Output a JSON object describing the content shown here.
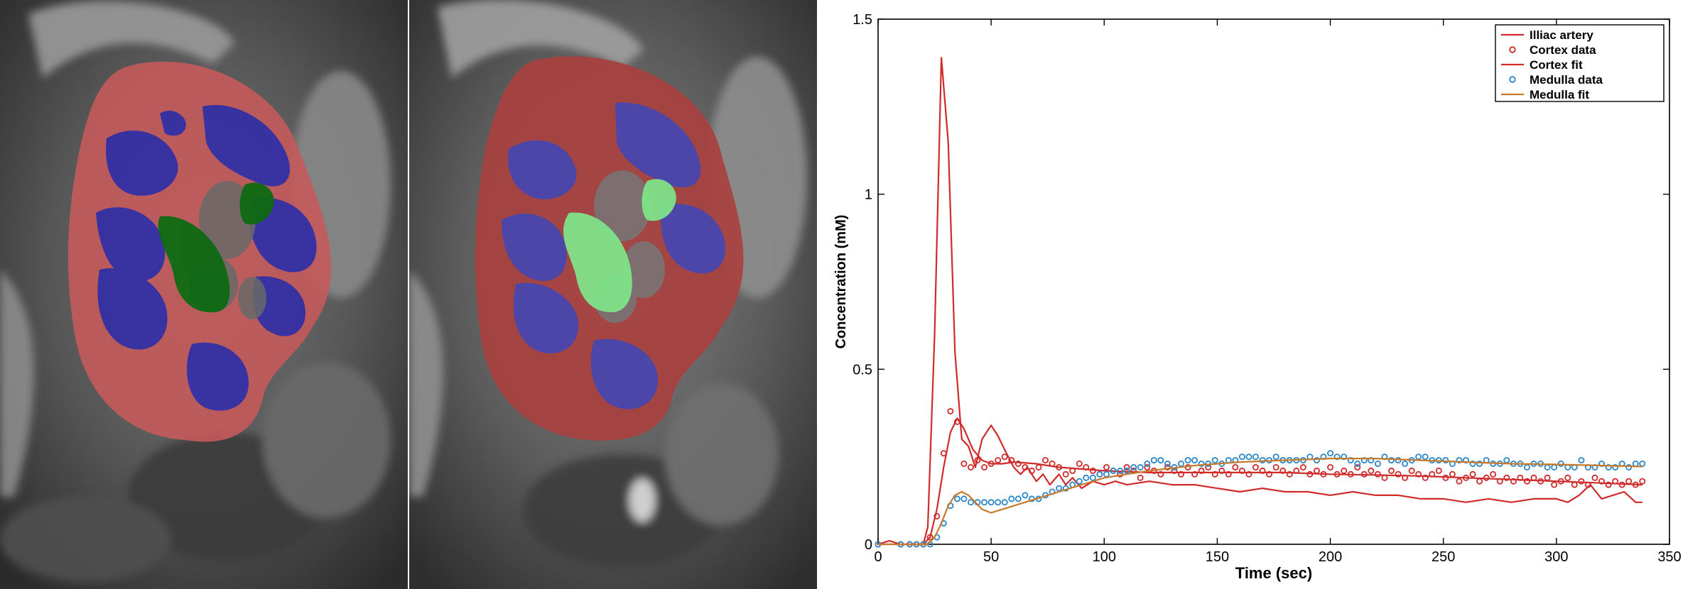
{
  "images": {
    "left": {
      "segmentation": "kidney-segmentation-dark",
      "colors": {
        "cortex": "#c45a5a",
        "medulla": "#2e2fa8",
        "pelvis": "#0e6a12"
      }
    },
    "right": {
      "segmentation": "kidney-segmentation-light",
      "colors": {
        "cortex": "#a8403f",
        "medulla": "#4347b4",
        "pelvis": "#7fe389"
      }
    }
  },
  "chart_data": {
    "type": "line",
    "xlabel": "Time (sec)",
    "ylabel": "Concentration (mM)",
    "xlim": [
      0,
      350
    ],
    "ylim": [
      0,
      1.5
    ],
    "xticks": [
      "0",
      "50",
      "100",
      "150",
      "200",
      "250",
      "300",
      "350"
    ],
    "yticks": [
      "0",
      "0.5",
      "1",
      "1.5"
    ],
    "grid": false,
    "legend_position": "top-right",
    "series": [
      {
        "name": "Illiac artery",
        "kind": "line",
        "color": "#d02a2a",
        "x": [
          0,
          5,
          10,
          15,
          20,
          22,
          25,
          28,
          31,
          34,
          37,
          40,
          43,
          46,
          50,
          53,
          56,
          60,
          63,
          66,
          70,
          73,
          76,
          80,
          83,
          86,
          90,
          95,
          100,
          105,
          110,
          120,
          130,
          140,
          150,
          160,
          170,
          180,
          190,
          200,
          210,
          220,
          230,
          240,
          250,
          260,
          270,
          280,
          290,
          300,
          305,
          310,
          315,
          320,
          325,
          330,
          335,
          338
        ],
        "y": [
          0,
          0.01,
          0,
          0,
          0,
          0.05,
          0.6,
          1.39,
          1.15,
          0.55,
          0.3,
          0.28,
          0.22,
          0.3,
          0.34,
          0.31,
          0.27,
          0.22,
          0.2,
          0.22,
          0.18,
          0.2,
          0.17,
          0.2,
          0.17,
          0.19,
          0.16,
          0.18,
          0.17,
          0.18,
          0.17,
          0.18,
          0.17,
          0.17,
          0.16,
          0.15,
          0.16,
          0.15,
          0.15,
          0.14,
          0.15,
          0.14,
          0.14,
          0.13,
          0.13,
          0.12,
          0.13,
          0.12,
          0.13,
          0.13,
          0.12,
          0.14,
          0.17,
          0.13,
          0.14,
          0.15,
          0.12,
          0.12
        ]
      },
      {
        "name": "Cortex data",
        "kind": "markers",
        "color": "#d02a2a",
        "x": [
          0,
          10,
          14,
          17,
          20,
          23,
          26,
          29,
          32,
          35,
          38,
          41,
          44,
          47,
          50,
          53,
          56,
          59,
          62,
          65,
          68,
          71,
          74,
          77,
          80,
          83,
          86,
          89,
          92,
          95,
          98,
          101,
          104,
          107,
          110,
          113,
          116,
          119,
          122,
          125,
          128,
          131,
          134,
          137,
          140,
          143,
          146,
          149,
          152,
          155,
          158,
          161,
          164,
          167,
          170,
          173,
          176,
          179,
          182,
          185,
          188,
          191,
          194,
          197,
          200,
          203,
          206,
          209,
          212,
          215,
          218,
          221,
          224,
          227,
          230,
          233,
          236,
          239,
          242,
          245,
          248,
          251,
          254,
          257,
          260,
          263,
          266,
          269,
          272,
          275,
          278,
          281,
          284,
          287,
          290,
          293,
          296,
          299,
          302,
          305,
          308,
          311,
          314,
          317,
          320,
          323,
          326,
          329,
          332,
          335,
          338
        ],
        "y": [
          0,
          0,
          0,
          0,
          0,
          0.02,
          0.08,
          0.26,
          0.38,
          0.35,
          0.23,
          0.22,
          0.24,
          0.22,
          0.23,
          0.24,
          0.25,
          0.24,
          0.23,
          0.22,
          0.21,
          0.22,
          0.24,
          0.23,
          0.22,
          0.2,
          0.21,
          0.23,
          0.22,
          0.21,
          0.2,
          0.22,
          0.21,
          0.2,
          0.22,
          0.21,
          0.19,
          0.22,
          0.21,
          0.2,
          0.22,
          0.21,
          0.2,
          0.22,
          0.2,
          0.21,
          0.22,
          0.2,
          0.21,
          0.2,
          0.22,
          0.21,
          0.2,
          0.22,
          0.21,
          0.2,
          0.22,
          0.21,
          0.2,
          0.21,
          0.22,
          0.2,
          0.21,
          0.2,
          0.22,
          0.2,
          0.21,
          0.2,
          0.22,
          0.2,
          0.21,
          0.2,
          0.19,
          0.21,
          0.2,
          0.19,
          0.21,
          0.2,
          0.19,
          0.2,
          0.21,
          0.19,
          0.2,
          0.18,
          0.19,
          0.2,
          0.18,
          0.19,
          0.2,
          0.18,
          0.19,
          0.18,
          0.19,
          0.18,
          0.19,
          0.18,
          0.19,
          0.17,
          0.18,
          0.19,
          0.17,
          0.18,
          0.17,
          0.19,
          0.18,
          0.17,
          0.18,
          0.17,
          0.18,
          0.17,
          0.18
        ]
      },
      {
        "name": "Cortex fit",
        "kind": "line",
        "color": "#d02a2a",
        "x": [
          0,
          20,
          23,
          26,
          29,
          32,
          35,
          38,
          42,
          46,
          50,
          55,
          60,
          70,
          80,
          90,
          100,
          120,
          140,
          160,
          180,
          200,
          220,
          240,
          260,
          280,
          300,
          320,
          338
        ],
        "y": [
          0,
          0,
          0.02,
          0.1,
          0.22,
          0.32,
          0.36,
          0.33,
          0.27,
          0.24,
          0.23,
          0.23,
          0.235,
          0.23,
          0.22,
          0.215,
          0.21,
          0.205,
          0.205,
          0.205,
          0.205,
          0.2,
          0.198,
          0.195,
          0.19,
          0.185,
          0.18,
          0.175,
          0.17
        ]
      },
      {
        "name": "Medulla data",
        "kind": "markers",
        "color": "#2a86c8",
        "x": [
          0,
          10,
          14,
          17,
          20,
          23,
          26,
          29,
          32,
          35,
          38,
          41,
          44,
          47,
          50,
          53,
          56,
          59,
          62,
          65,
          68,
          71,
          74,
          77,
          80,
          83,
          86,
          89,
          92,
          95,
          98,
          101,
          104,
          107,
          110,
          113,
          116,
          119,
          122,
          125,
          128,
          131,
          134,
          137,
          140,
          143,
          146,
          149,
          152,
          155,
          158,
          161,
          164,
          167,
          170,
          173,
          176,
          179,
          182,
          185,
          188,
          191,
          194,
          197,
          200,
          203,
          206,
          209,
          212,
          215,
          218,
          221,
          224,
          227,
          230,
          233,
          236,
          239,
          242,
          245,
          248,
          251,
          254,
          257,
          260,
          263,
          266,
          269,
          272,
          275,
          278,
          281,
          284,
          287,
          290,
          293,
          296,
          299,
          302,
          305,
          308,
          311,
          314,
          317,
          320,
          323,
          326,
          329,
          332,
          335,
          338
        ],
        "y": [
          0,
          0,
          0,
          0,
          0,
          0,
          0.02,
          0.06,
          0.11,
          0.13,
          0.13,
          0.12,
          0.12,
          0.12,
          0.12,
          0.12,
          0.12,
          0.13,
          0.13,
          0.14,
          0.13,
          0.13,
          0.14,
          0.15,
          0.16,
          0.16,
          0.17,
          0.18,
          0.19,
          0.19,
          0.2,
          0.2,
          0.21,
          0.21,
          0.21,
          0.22,
          0.22,
          0.23,
          0.24,
          0.24,
          0.23,
          0.22,
          0.23,
          0.24,
          0.24,
          0.23,
          0.23,
          0.24,
          0.23,
          0.24,
          0.24,
          0.25,
          0.25,
          0.25,
          0.24,
          0.24,
          0.25,
          0.24,
          0.24,
          0.24,
          0.24,
          0.25,
          0.24,
          0.25,
          0.26,
          0.25,
          0.25,
          0.24,
          0.23,
          0.24,
          0.24,
          0.23,
          0.25,
          0.24,
          0.24,
          0.23,
          0.24,
          0.25,
          0.25,
          0.24,
          0.24,
          0.24,
          0.23,
          0.24,
          0.24,
          0.23,
          0.23,
          0.24,
          0.23,
          0.23,
          0.24,
          0.23,
          0.23,
          0.22,
          0.23,
          0.23,
          0.22,
          0.22,
          0.23,
          0.22,
          0.22,
          0.24,
          0.22,
          0.22,
          0.23,
          0.22,
          0.22,
          0.23,
          0.22,
          0.23,
          0.23
        ]
      },
      {
        "name": "Medulla fit",
        "kind": "line",
        "color": "#c77a2c",
        "x": [
          0,
          22,
          25,
          28,
          31,
          34,
          37,
          40,
          43,
          46,
          50,
          55,
          60,
          70,
          80,
          90,
          100,
          110,
          120,
          140,
          160,
          180,
          200,
          220,
          240,
          260,
          280,
          300,
          320,
          338
        ],
        "y": [
          0,
          0,
          0.02,
          0.06,
          0.11,
          0.14,
          0.15,
          0.14,
          0.12,
          0.1,
          0.09,
          0.1,
          0.11,
          0.13,
          0.15,
          0.17,
          0.19,
          0.2,
          0.21,
          0.225,
          0.235,
          0.24,
          0.245,
          0.245,
          0.24,
          0.235,
          0.23,
          0.228,
          0.225,
          0.222
        ]
      }
    ]
  }
}
